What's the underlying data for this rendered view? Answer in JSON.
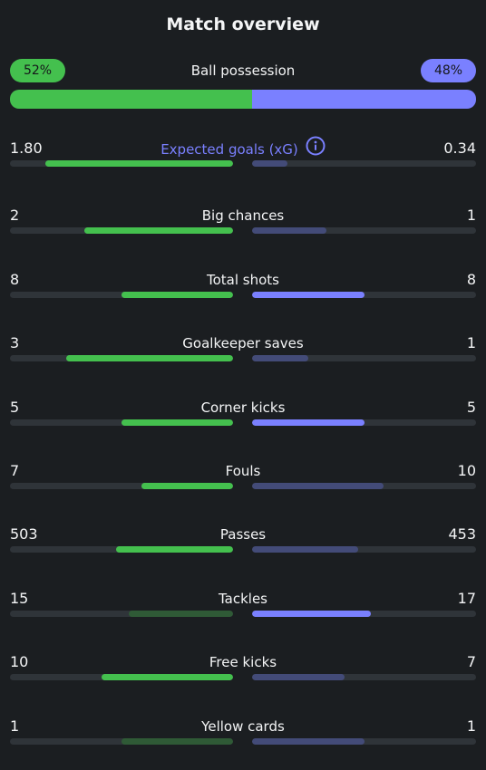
{
  "title": "Match overview",
  "colors": {
    "home": "#44c04e",
    "home_dim": "#2f5a36",
    "away": "#7a80ff",
    "away_dim": "#434b78",
    "track": "#2f3439"
  },
  "possession": {
    "label": "Ball possession",
    "home": "52%",
    "away": "48%",
    "home_value": 52,
    "away_value": 48
  },
  "stats": [
    {
      "name": "Expected goals (xG)",
      "home": "1.80",
      "away": "0.34",
      "home_num": 1.8,
      "away_num": 0.34,
      "highlight": true,
      "info_icon": "info-circle-icon"
    },
    {
      "name": "Big chances",
      "home": "2",
      "away": "1",
      "home_num": 2,
      "away_num": 1
    },
    {
      "name": "Total shots",
      "home": "8",
      "away": "8",
      "home_num": 8,
      "away_num": 8
    },
    {
      "name": "Goalkeeper saves",
      "home": "3",
      "away": "1",
      "home_num": 3,
      "away_num": 1
    },
    {
      "name": "Corner kicks",
      "home": "5",
      "away": "5",
      "home_num": 5,
      "away_num": 5
    },
    {
      "name": "Fouls",
      "home": "7",
      "away": "10",
      "home_num": 7,
      "away_num": 10
    },
    {
      "name": "Passes",
      "home": "503",
      "away": "453",
      "home_num": 503,
      "away_num": 453
    },
    {
      "name": "Tackles",
      "home": "15",
      "away": "17",
      "home_num": 15,
      "away_num": 17
    },
    {
      "name": "Free kicks",
      "home": "10",
      "away": "7",
      "home_num": 10,
      "away_num": 7
    },
    {
      "name": "Yellow cards",
      "home": "1",
      "away": "1",
      "home_num": 1,
      "away_num": 1
    }
  ]
}
